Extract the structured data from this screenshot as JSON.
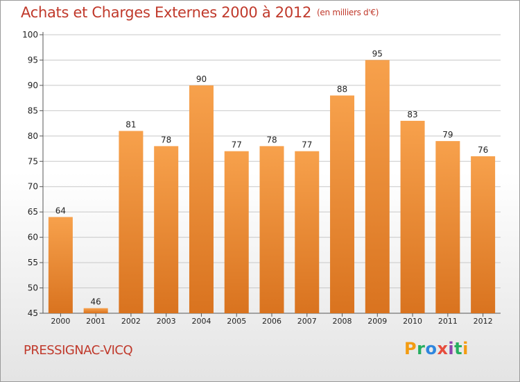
{
  "header": {
    "title": "Achats et Charges Externes 2000 à 2012",
    "unit": "(en milliers d'€)"
  },
  "footer": {
    "commune": "PRESSIGNAC-VICQ",
    "logo_text": "Proxiti",
    "logo_letters": [
      {
        "ch": "P",
        "color": "#f39c12"
      },
      {
        "ch": "r",
        "color": "#27ae60"
      },
      {
        "ch": "o",
        "color": "#2e86de"
      },
      {
        "ch": "x",
        "color": "#e74c3c"
      },
      {
        "ch": "i",
        "color": "#8e44ad"
      },
      {
        "ch": "t",
        "color": "#27ae60"
      },
      {
        "ch": "i",
        "color": "#f39c12"
      }
    ]
  },
  "colors": {
    "bar_top": "#f7a14c",
    "bar_bottom": "#d9731f",
    "grid": "#c8c8c8",
    "axis": "#555555",
    "text": "#222222",
    "title": "#c0392b"
  },
  "chart_data": {
    "type": "bar",
    "title": "Achats et Charges Externes 2000 à 2012",
    "subtitle": "(en milliers d'€)",
    "xlabel": "",
    "ylabel": "",
    "ylim": [
      45,
      100
    ],
    "yticks": [
      45,
      50,
      55,
      60,
      65,
      70,
      75,
      80,
      85,
      90,
      95,
      100
    ],
    "grid": true,
    "categories": [
      "2000",
      "2001",
      "2002",
      "2003",
      "2004",
      "2005",
      "2006",
      "2007",
      "2008",
      "2009",
      "2010",
      "2011",
      "2012"
    ],
    "values": [
      64,
      46,
      81,
      78,
      90,
      77,
      78,
      77,
      88,
      95,
      83,
      79,
      76
    ]
  }
}
